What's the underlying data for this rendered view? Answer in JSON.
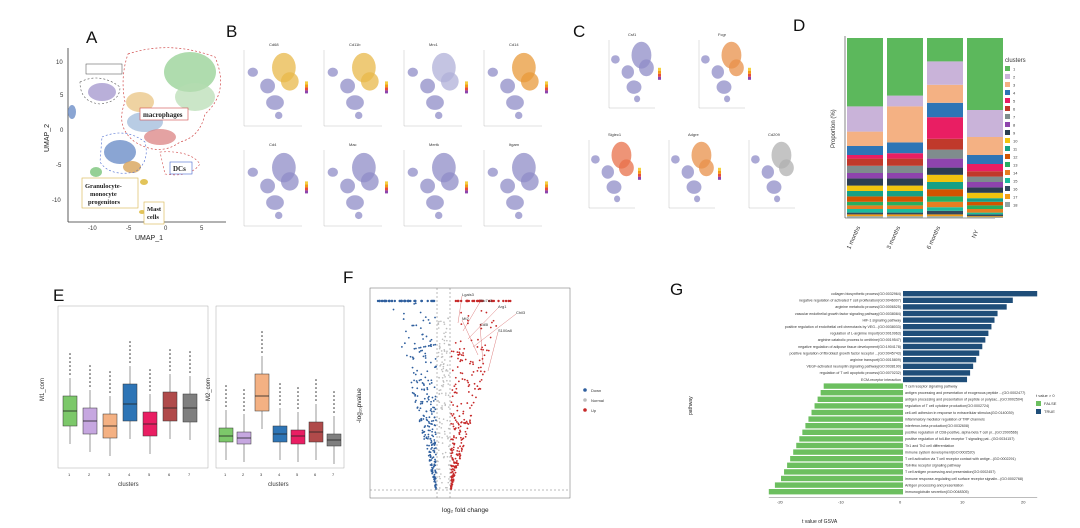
{
  "panels": {
    "A": {
      "label": "A",
      "xlabel": "UMAP_1",
      "ylabel": "UMAP_2",
      "xticks": [
        "-10",
        "-5",
        "0",
        "5"
      ],
      "yticks": [
        "10",
        "5",
        "0",
        "-5",
        "-10"
      ],
      "annotations": [
        "macrophages",
        "DCs",
        "Granulocyte-",
        "monocyte",
        "progenitors",
        "Mast",
        "cells"
      ]
    },
    "B": {
      "label": "B",
      "minis": [
        "Cd68",
        "Cd11b",
        "Mrc1",
        "Cd14",
        "Cd4",
        "Mac",
        "Mertk",
        "Itgam"
      ]
    },
    "C": {
      "label": "C",
      "minis": [
        "Csf1",
        "Fcgr",
        "Siglec1",
        "Adgre",
        "Cd209"
      ]
    },
    "D": {
      "label": "D",
      "ylabel": "Proportion (%)",
      "legend_title": "clusters",
      "categories": [
        "1 months",
        "3 months",
        "6 months",
        "NY"
      ]
    },
    "E": {
      "label": "E",
      "left_ylabel": "M1_com",
      "right_ylabel": "M2_com",
      "xlabel": "clusters",
      "xticks": [
        "1",
        "2",
        "3",
        "4",
        "5",
        "6",
        "7"
      ]
    },
    "F": {
      "label": "F",
      "xlabel": "log₂ fold change",
      "ylabel": "-log₁₀pvalue",
      "legend": [
        "Down",
        "Normal",
        "Up"
      ],
      "gene_labels": [
        "Lgals3",
        "Slc7a2",
        "Arg1",
        "Chil3",
        "Mt2",
        "Cd5l",
        "S100a8"
      ]
    },
    "G": {
      "label": "G",
      "ylabel": "pathway",
      "xlabel": "t value of GSVA",
      "legend_title": "t value > 0",
      "legend": [
        "FALSE",
        "TRUE"
      ],
      "xticks": [
        "-20",
        "-10",
        "0",
        "10",
        "20"
      ],
      "pathways_up": [
        "collagen biosynthetic process(GO:0032964)",
        "negative regulation of activated T cell proliferation(GO:0046007)",
        "arginine metabolic process(GO:0006525)",
        "vascular endothelial growth factor signaling pathway(GO:0038084)",
        "HIF-1 signaling pathway",
        "positive regulation of endothelial cell chemotaxis by VEG...(GO:0038033)",
        "regulation of L-arginine import(GO:0010963)",
        "arginine catabolic process to ornithine(GO:0019547)",
        "negative regulation of adipose tissue development(GO:1904178)",
        "positive regulation of fibroblast growth factor receptor ...(GO:0045743)",
        "arginine transport(GO:0015809)",
        "VEGF-activated neuropilin signaling pathway(GO:0038190)",
        "regulation of T cell apoptotic process(GO:0070232)",
        "ECM-receptor interaction"
      ],
      "pathways_down": [
        "T cell receptor signaling pathway",
        "antigen processing and presentation of exogenous peptide ...(GO:0002477)",
        "antigen processing and presentation of peptide or polysac...(GO:0002504)",
        "regulation of T cell cytokine production(GO:0002724)",
        "cell-cell adhesion in response to extracellular stimulus(GO:0140039)",
        "inflammatory mediator regulation of TRP channels",
        "interferon-beta production(GO:0032608)",
        "positive regulation of CD8-positive, alpha-beta T cell pr...(GO:2000566)",
        "positive regulation of toll-like receptor 7 signaling pat...(GO:0034157)",
        "Th1 and Th2 cell differentiation",
        "immune system development(GO:0002520)",
        "T cell activation via T cell receptor contact with antige...(GO:0002291)",
        "Toll-like receptor signaling pathway",
        "T cell antigen processing and presentation(GO:0002457)",
        "immune response-regulating cell surface receptor signalin...(GO:0002768)",
        "Antigen processing and presentation",
        "immunoglobulin secretion(GO:0048305)"
      ],
      "t_values_up": [
        22,
        18,
        17,
        15.5,
        15,
        14.5,
        14,
        13.5,
        13,
        12.5,
        12,
        11.5,
        11,
        10.5
      ],
      "t_values_down": [
        -13,
        -13.5,
        -14,
        -14.5,
        -15,
        -15.5,
        -16,
        -16.5,
        -17,
        -17.5,
        -18,
        -18.5,
        -19,
        -19.5,
        -20,
        -21,
        -22
      ],
      "colors": {
        "FALSE": "#6cbf5f",
        "TRUE": "#1f4e79"
      }
    }
  }
}
